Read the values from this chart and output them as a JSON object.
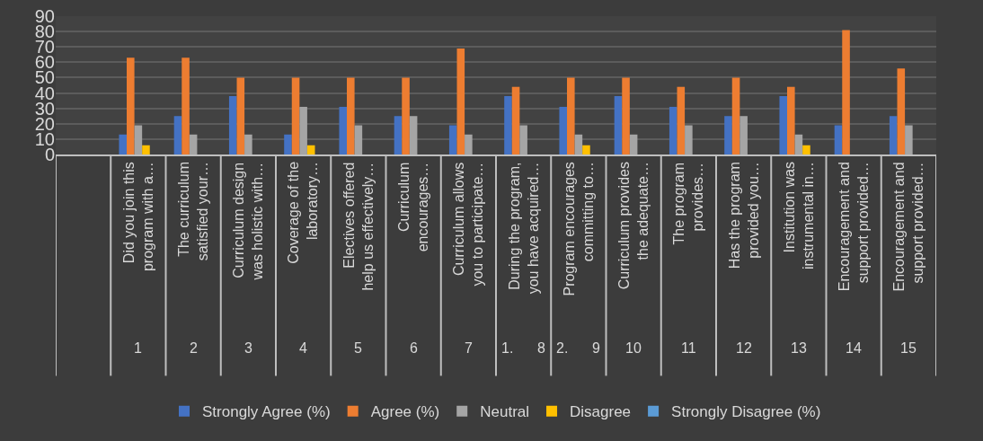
{
  "chart_data": {
    "type": "bar",
    "categories": [
      null,
      "Did you join this\nprogram with a…\n1",
      "The curriculum\nsatisfied your…\n2",
      "Curriculum design\nwas holistic with…\n3",
      "Coverage of the\nlaboratory…\n4",
      "Electives offered\nhelp us effectively…\n5",
      "Curriculum\nencourages…\n6",
      "Curriculum allows\nyou to participate…\n7",
      "During the program,\nyou have acquired…\n1.      8",
      "Program encourages\ncommitting to…\n2.      9",
      "Curriculum provides\nthe adequate…\n10",
      "The program\nprovides…\n11",
      "Has the program\nprovided you…\n12",
      "Institution was\ninstrumental in…\n13",
      "Encouragement and\nsupport provided…\n14",
      "Encouragement and\nsupport provided…\n15"
    ],
    "series": [
      {
        "name": "Strongly Agree (%)",
        "color": "#4472c4",
        "values": [
          null,
          13,
          25,
          38,
          13,
          31,
          25,
          19,
          38,
          31,
          38,
          31,
          25,
          38,
          19,
          25
        ]
      },
      {
        "name": "Agree (%)",
        "color": "#ed7d31",
        "values": [
          null,
          63,
          63,
          50,
          50,
          50,
          50,
          69,
          44,
          50,
          50,
          44,
          50,
          44,
          81,
          56
        ]
      },
      {
        "name": "Neutral",
        "color": "#a5a5a5",
        "values": [
          null,
          19,
          13,
          13,
          31,
          19,
          25,
          13,
          19,
          13,
          13,
          19,
          25,
          13,
          0,
          19
        ]
      },
      {
        "name": "Disagree",
        "color": "#ffc000",
        "values": [
          null,
          6,
          0,
          0,
          6,
          0,
          0,
          0,
          0,
          6,
          0,
          0,
          0,
          6,
          0,
          0
        ]
      },
      {
        "name": "Strongly Disagree (%)",
        "color": "#5b9bd5",
        "values": [
          null,
          0,
          0,
          0,
          0,
          0,
          0,
          0,
          0,
          0,
          0,
          0,
          0,
          0,
          0,
          0
        ]
      }
    ],
    "ylim": [
      0,
      90
    ],
    "yticks": [
      0,
      10,
      20,
      30,
      40,
      50,
      60,
      70,
      80,
      90
    ],
    "grid": "y",
    "legend": "bottom"
  }
}
